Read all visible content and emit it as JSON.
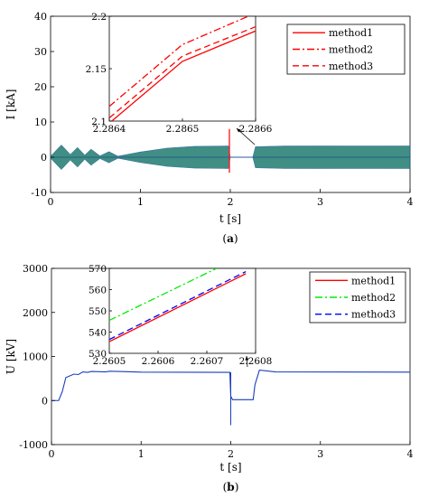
{
  "chart_data": [
    {
      "type": "line",
      "panel_label": "(a)",
      "xlabel": "t [s]",
      "ylabel": "I [kA]",
      "xlim": [
        0,
        4
      ],
      "ylim": [
        -10,
        40
      ],
      "xticks": [
        "0",
        "1",
        "2",
        "3",
        "4"
      ],
      "yticks": [
        "-10",
        "0",
        "10",
        "20",
        "30",
        "40"
      ],
      "grid": false,
      "legend_position": "top-right",
      "series": [
        {
          "name": "method1",
          "color": "#ff0000",
          "dash": "solid"
        },
        {
          "name": "method2",
          "color": "#ff0000",
          "dash": "dashdot"
        },
        {
          "name": "method3",
          "color": "#ff0000",
          "dash": "dashed"
        }
      ],
      "signal": {
        "oscillation_envelope_kA": [
          {
            "t": 0.0,
            "amp": 0.3
          },
          {
            "t": 0.12,
            "amp": 3.5
          },
          {
            "t": 0.22,
            "amp": 0.8
          },
          {
            "t": 0.3,
            "amp": 2.8
          },
          {
            "t": 0.38,
            "amp": 0.6
          },
          {
            "t": 0.45,
            "amp": 2.3
          },
          {
            "t": 0.55,
            "amp": 0.4
          },
          {
            "t": 0.65,
            "amp": 1.6
          },
          {
            "t": 0.75,
            "amp": 0.3
          },
          {
            "t": 1.0,
            "amp": 1.5
          },
          {
            "t": 1.3,
            "amp": 2.6
          },
          {
            "t": 1.6,
            "amp": 3.1
          },
          {
            "t": 1.98,
            "amp": 3.2
          },
          {
            "t": 2.0,
            "amp": 0.0
          },
          {
            "t": 2.25,
            "amp": 0.0
          },
          {
            "t": 2.28,
            "amp": 3.0
          },
          {
            "t": 2.6,
            "amp": 3.2
          },
          {
            "t": 4.0,
            "amp": 3.2
          }
        ],
        "fault_spike": {
          "t": 2.0,
          "peak_kA": 8.0
        }
      },
      "inset": {
        "xlim": [
          2.2864,
          2.2866
        ],
        "ylim": [
          2.1,
          2.2
        ],
        "xticks": [
          "2.2864",
          "2.2865",
          "2.2866"
        ],
        "yticks": [
          "2.1",
          "2.15",
          "2.2"
        ],
        "lines": [
          {
            "name": "method1",
            "x": [
              2.2864,
              2.2865,
              2.2866
            ],
            "y": [
              2.098,
              2.157,
              2.186
            ]
          },
          {
            "name": "method2",
            "x": [
              2.2864,
              2.2865,
              2.2866
            ],
            "y": [
              2.114,
              2.173,
              2.203
            ]
          },
          {
            "name": "method3",
            "x": [
              2.2864,
              2.2865,
              2.2866
            ],
            "y": [
              2.103,
              2.162,
              2.19
            ]
          }
        ]
      }
    },
    {
      "type": "line",
      "panel_label": "(b)",
      "xlabel": "t [s]",
      "ylabel": "U [kV]",
      "xlim": [
        0,
        4
      ],
      "ylim": [
        -1000,
        3000
      ],
      "xticks": [
        "0",
        "1",
        "2",
        "3",
        "4"
      ],
      "yticks": [
        "-1000",
        "0",
        "1000",
        "2000",
        "3000"
      ],
      "grid": false,
      "legend_position": "top-right",
      "series": [
        {
          "name": "method1",
          "color": "#ff0000",
          "dash": "solid"
        },
        {
          "name": "method2",
          "color": "#00ee00",
          "dash": "dashdot"
        },
        {
          "name": "method3",
          "color": "#0000ff",
          "dash": "dashed"
        }
      ],
      "signal": {
        "points_kV": [
          {
            "t": 0.0,
            "v": 0
          },
          {
            "t": 0.08,
            "v": 0
          },
          {
            "t": 0.12,
            "v": 200
          },
          {
            "t": 0.16,
            "v": 520
          },
          {
            "t": 0.25,
            "v": 600
          },
          {
            "t": 0.3,
            "v": 590
          },
          {
            "t": 0.35,
            "v": 650
          },
          {
            "t": 0.4,
            "v": 640
          },
          {
            "t": 0.45,
            "v": 660
          },
          {
            "t": 0.6,
            "v": 650
          },
          {
            "t": 0.65,
            "v": 665
          },
          {
            "t": 1.0,
            "v": 645
          },
          {
            "t": 1.99,
            "v": 640
          },
          {
            "t": 2.0,
            "v": 100
          },
          {
            "t": 2.02,
            "v": 20
          },
          {
            "t": 2.25,
            "v": 20
          },
          {
            "t": 2.27,
            "v": 360
          },
          {
            "t": 2.32,
            "v": 690
          },
          {
            "t": 2.5,
            "v": 650
          },
          {
            "t": 4.0,
            "v": 645
          }
        ],
        "fault_transient": {
          "t": 2.0,
          "min_kV": -560,
          "max_kV": 640
        }
      },
      "inset": {
        "xlim": [
          2.2605,
          2.2608
        ],
        "ylim": [
          530,
          570
        ],
        "xticks": [
          "2.2605",
          "2.2606",
          "2.2607",
          "2.2608"
        ],
        "yticks": [
          "530",
          "540",
          "550",
          "560",
          "570"
        ],
        "lines": [
          {
            "name": "method1",
            "x": [
              2.2605,
              2.26078
            ],
            "y": [
              535.5,
              567.5
            ]
          },
          {
            "name": "method2",
            "x": [
              2.2605,
              2.26072
            ],
            "y": [
              545.5,
              570.0
            ]
          },
          {
            "name": "method3",
            "x": [
              2.2605,
              2.26078
            ],
            "y": [
              536.5,
              568.5
            ]
          }
        ]
      }
    }
  ]
}
